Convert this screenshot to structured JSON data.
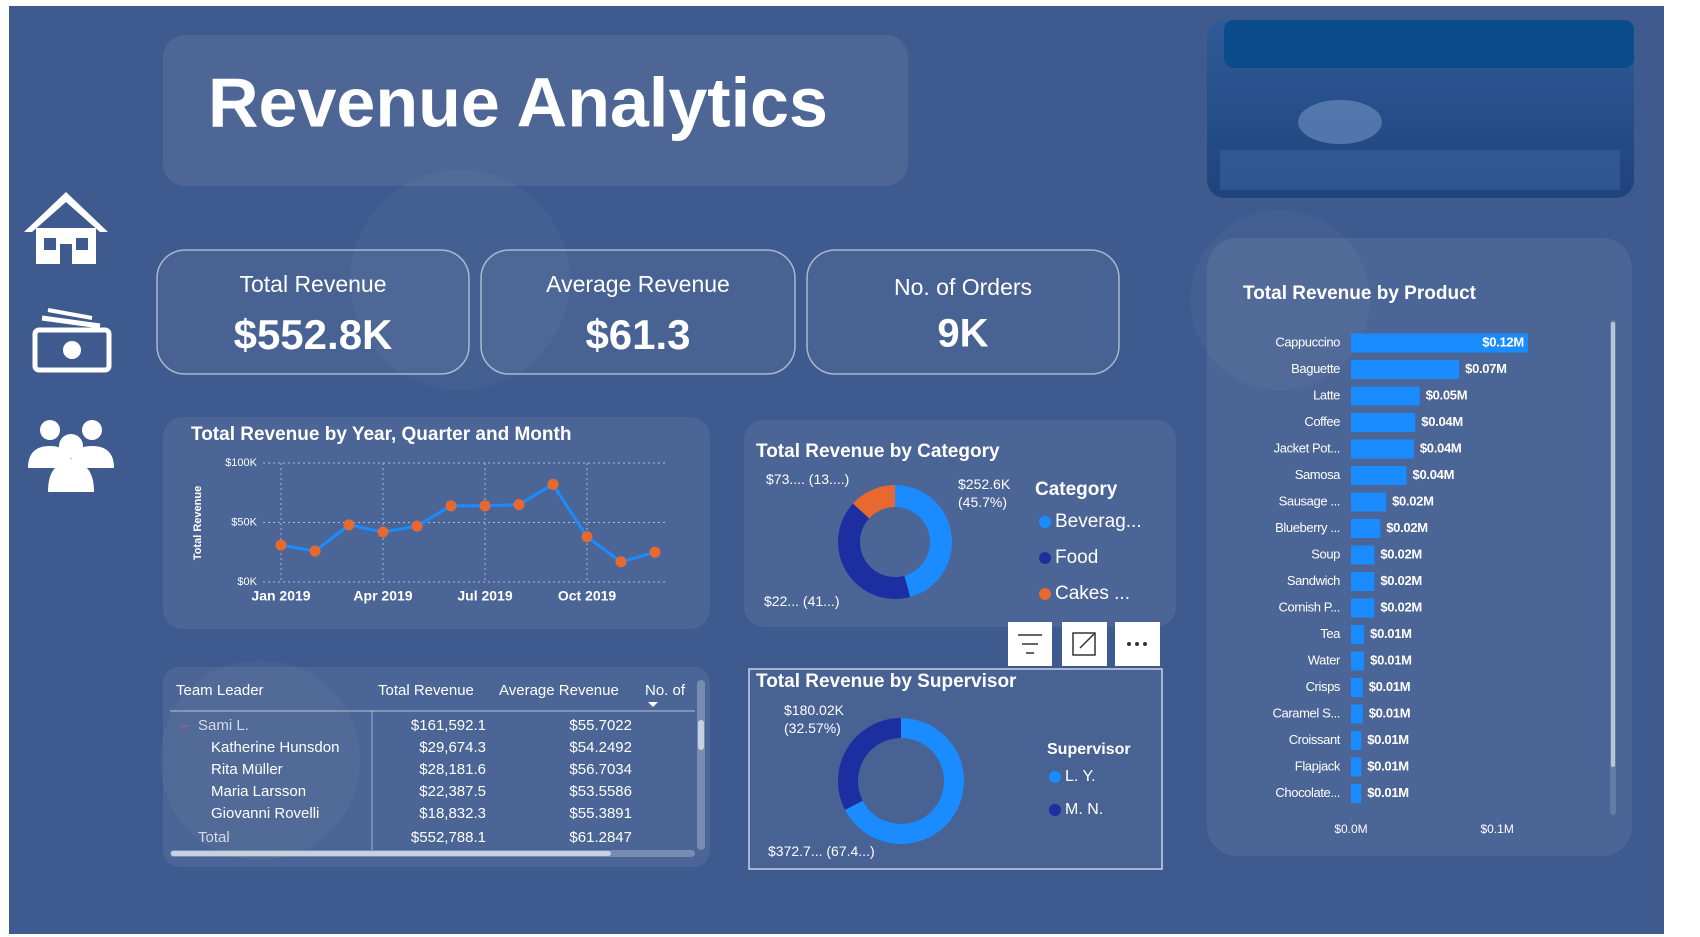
{
  "header": {
    "title": "Revenue Analytics"
  },
  "kpis": [
    {
      "label": "Total Revenue",
      "value": "$552.8K"
    },
    {
      "label": "Average Revenue",
      "value": "$61.3"
    },
    {
      "label": "No. of Orders",
      "value": "9K"
    }
  ],
  "revenue_trend": {
    "type": "line",
    "title": "Total Revenue by Year, Quarter and Month",
    "y_label": "Total Revenue",
    "categories": [
      "Jan 2019",
      null,
      null,
      "Apr 2019",
      null,
      null,
      "Jul 2019",
      null,
      null,
      "Oct 2019",
      null,
      null
    ],
    "values": [
      31000,
      26000,
      48000,
      42000,
      47000,
      64000,
      64000,
      65000,
      82000,
      38000,
      17000,
      25000
    ],
    "color": "#1a8cff",
    "marker_color": "#e8692f",
    "ylim": [
      0,
      100000
    ],
    "yticks": [
      {
        "value": 0,
        "label": "$0K"
      },
      {
        "value": 50000,
        "label": "$50K"
      },
      {
        "value": 100000,
        "label": "$100K"
      }
    ],
    "grid": true
  },
  "category_share": {
    "type": "donut",
    "title": "Total Revenue by Category",
    "legend_title": "Category",
    "categories": [
      "Beverag...",
      "Food",
      "Cakes ..."
    ],
    "values": [
      252.6,
      227,
      73
    ],
    "value_labels": [
      "$252.6K (45.7%)",
      "$22... (41...)",
      "$73.... (13....)"
    ],
    "colors": [
      "#1a8cff",
      "#1d2fa0",
      "#e8692f"
    ]
  },
  "supervisor_share": {
    "type": "donut",
    "title": "Total Revenue by Supervisor",
    "legend_title": "Supervisor",
    "categories": [
      "L. Y.",
      "M. N."
    ],
    "values": [
      372.7,
      180.02
    ],
    "value_labels": [
      "$372.7... (67.4...)",
      "$180.02K (32.57%)"
    ],
    "colors": [
      "#1a8cff",
      "#1d2fa0"
    ]
  },
  "product_revenue": {
    "type": "hbar",
    "title": "Total Revenue by Product",
    "categories": [
      "Cappuccino",
      "Baguette",
      "Latte",
      "Coffee",
      "Jacket Pot...",
      "Samosa",
      "Sausage ...",
      "Blueberry ...",
      "Soup",
      "Sandwich",
      "Cornish P...",
      "Tea",
      "Water",
      "Crisps",
      "Caramel S...",
      "Croissant",
      "Flapjack",
      "Chocolate..."
    ],
    "values": [
      0.121,
      0.074,
      0.047,
      0.044,
      0.043,
      0.038,
      0.024,
      0.02,
      0.016,
      0.016,
      0.016,
      0.009,
      0.009,
      0.008,
      0.008,
      0.007,
      0.007,
      0.007
    ],
    "value_labels": [
      "$0.12M",
      "$0.07M",
      "$0.05M",
      "$0.04M",
      "$0.04M",
      "$0.04M",
      "$0.02M",
      "$0.02M",
      "$0.02M",
      "$0.02M",
      "$0.02M",
      "$0.01M",
      "$0.01M",
      "$0.01M",
      "$0.01M",
      "$0.01M",
      "$0.01M",
      "$0.01M"
    ],
    "color": "#1a8cff",
    "xlim": [
      0,
      0.13
    ],
    "xticks": [
      {
        "value": 0,
        "label": "$0.0M"
      },
      {
        "value": 0.1,
        "label": "$0.1M"
      }
    ]
  },
  "team_table": {
    "columns": [
      "Team Leader",
      "Total Revenue",
      "Average Revenue",
      "No. of"
    ],
    "rows": [
      [
        "Sami L.",
        "$161,592.1",
        "$55.7022"
      ],
      [
        "Katherine Hunsdon",
        "$29,674.3",
        "$54.2492"
      ],
      [
        "Rita Müller",
        "$28,181.6",
        "$56.7034"
      ],
      [
        "Maria Larsson",
        "$22,387.5",
        "$53.5586"
      ],
      [
        "Giovanni Rovelli",
        "$18,832.3",
        "$55.3891"
      ]
    ],
    "total": [
      "Total",
      "$552,788.1",
      "$61.2847"
    ]
  }
}
